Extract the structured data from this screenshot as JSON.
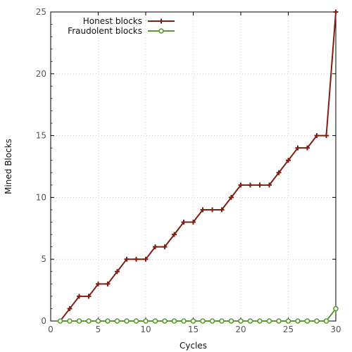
{
  "chart_data": {
    "type": "line",
    "title": "",
    "xlabel": "Cycles",
    "ylabel": "Mined Blocks",
    "xlim": [
      0,
      30
    ],
    "ylim": [
      0,
      25
    ],
    "xticks": [
      0,
      5,
      10,
      15,
      20,
      25,
      30
    ],
    "yticks": [
      0,
      5,
      10,
      15,
      20,
      25
    ],
    "grid": true,
    "legend_position": "top-left",
    "x": [
      1,
      2,
      3,
      4,
      5,
      6,
      7,
      8,
      9,
      10,
      11,
      12,
      13,
      14,
      15,
      16,
      17,
      18,
      19,
      20,
      21,
      22,
      23,
      24,
      25,
      26,
      27,
      28,
      29,
      30
    ],
    "series": [
      {
        "name": "Honest blocks",
        "color": "#7f1f14",
        "marker": "plus",
        "values": [
          0,
          1,
          2,
          2,
          3,
          3,
          4,
          5,
          5,
          5,
          6,
          6,
          7,
          8,
          8,
          9,
          9,
          9,
          10,
          11,
          11,
          11,
          11,
          12,
          13,
          14,
          14,
          15,
          15,
          25
        ]
      },
      {
        "name": "Fraudolent blocks",
        "color": "#5a9a32",
        "marker": "circle",
        "values": [
          0,
          0,
          0,
          0,
          0,
          0,
          0,
          0,
          0,
          0,
          0,
          0,
          0,
          0,
          0,
          0,
          0,
          0,
          0,
          0,
          0,
          0,
          0,
          0,
          0,
          0,
          0,
          0,
          0,
          1
        ]
      }
    ]
  }
}
